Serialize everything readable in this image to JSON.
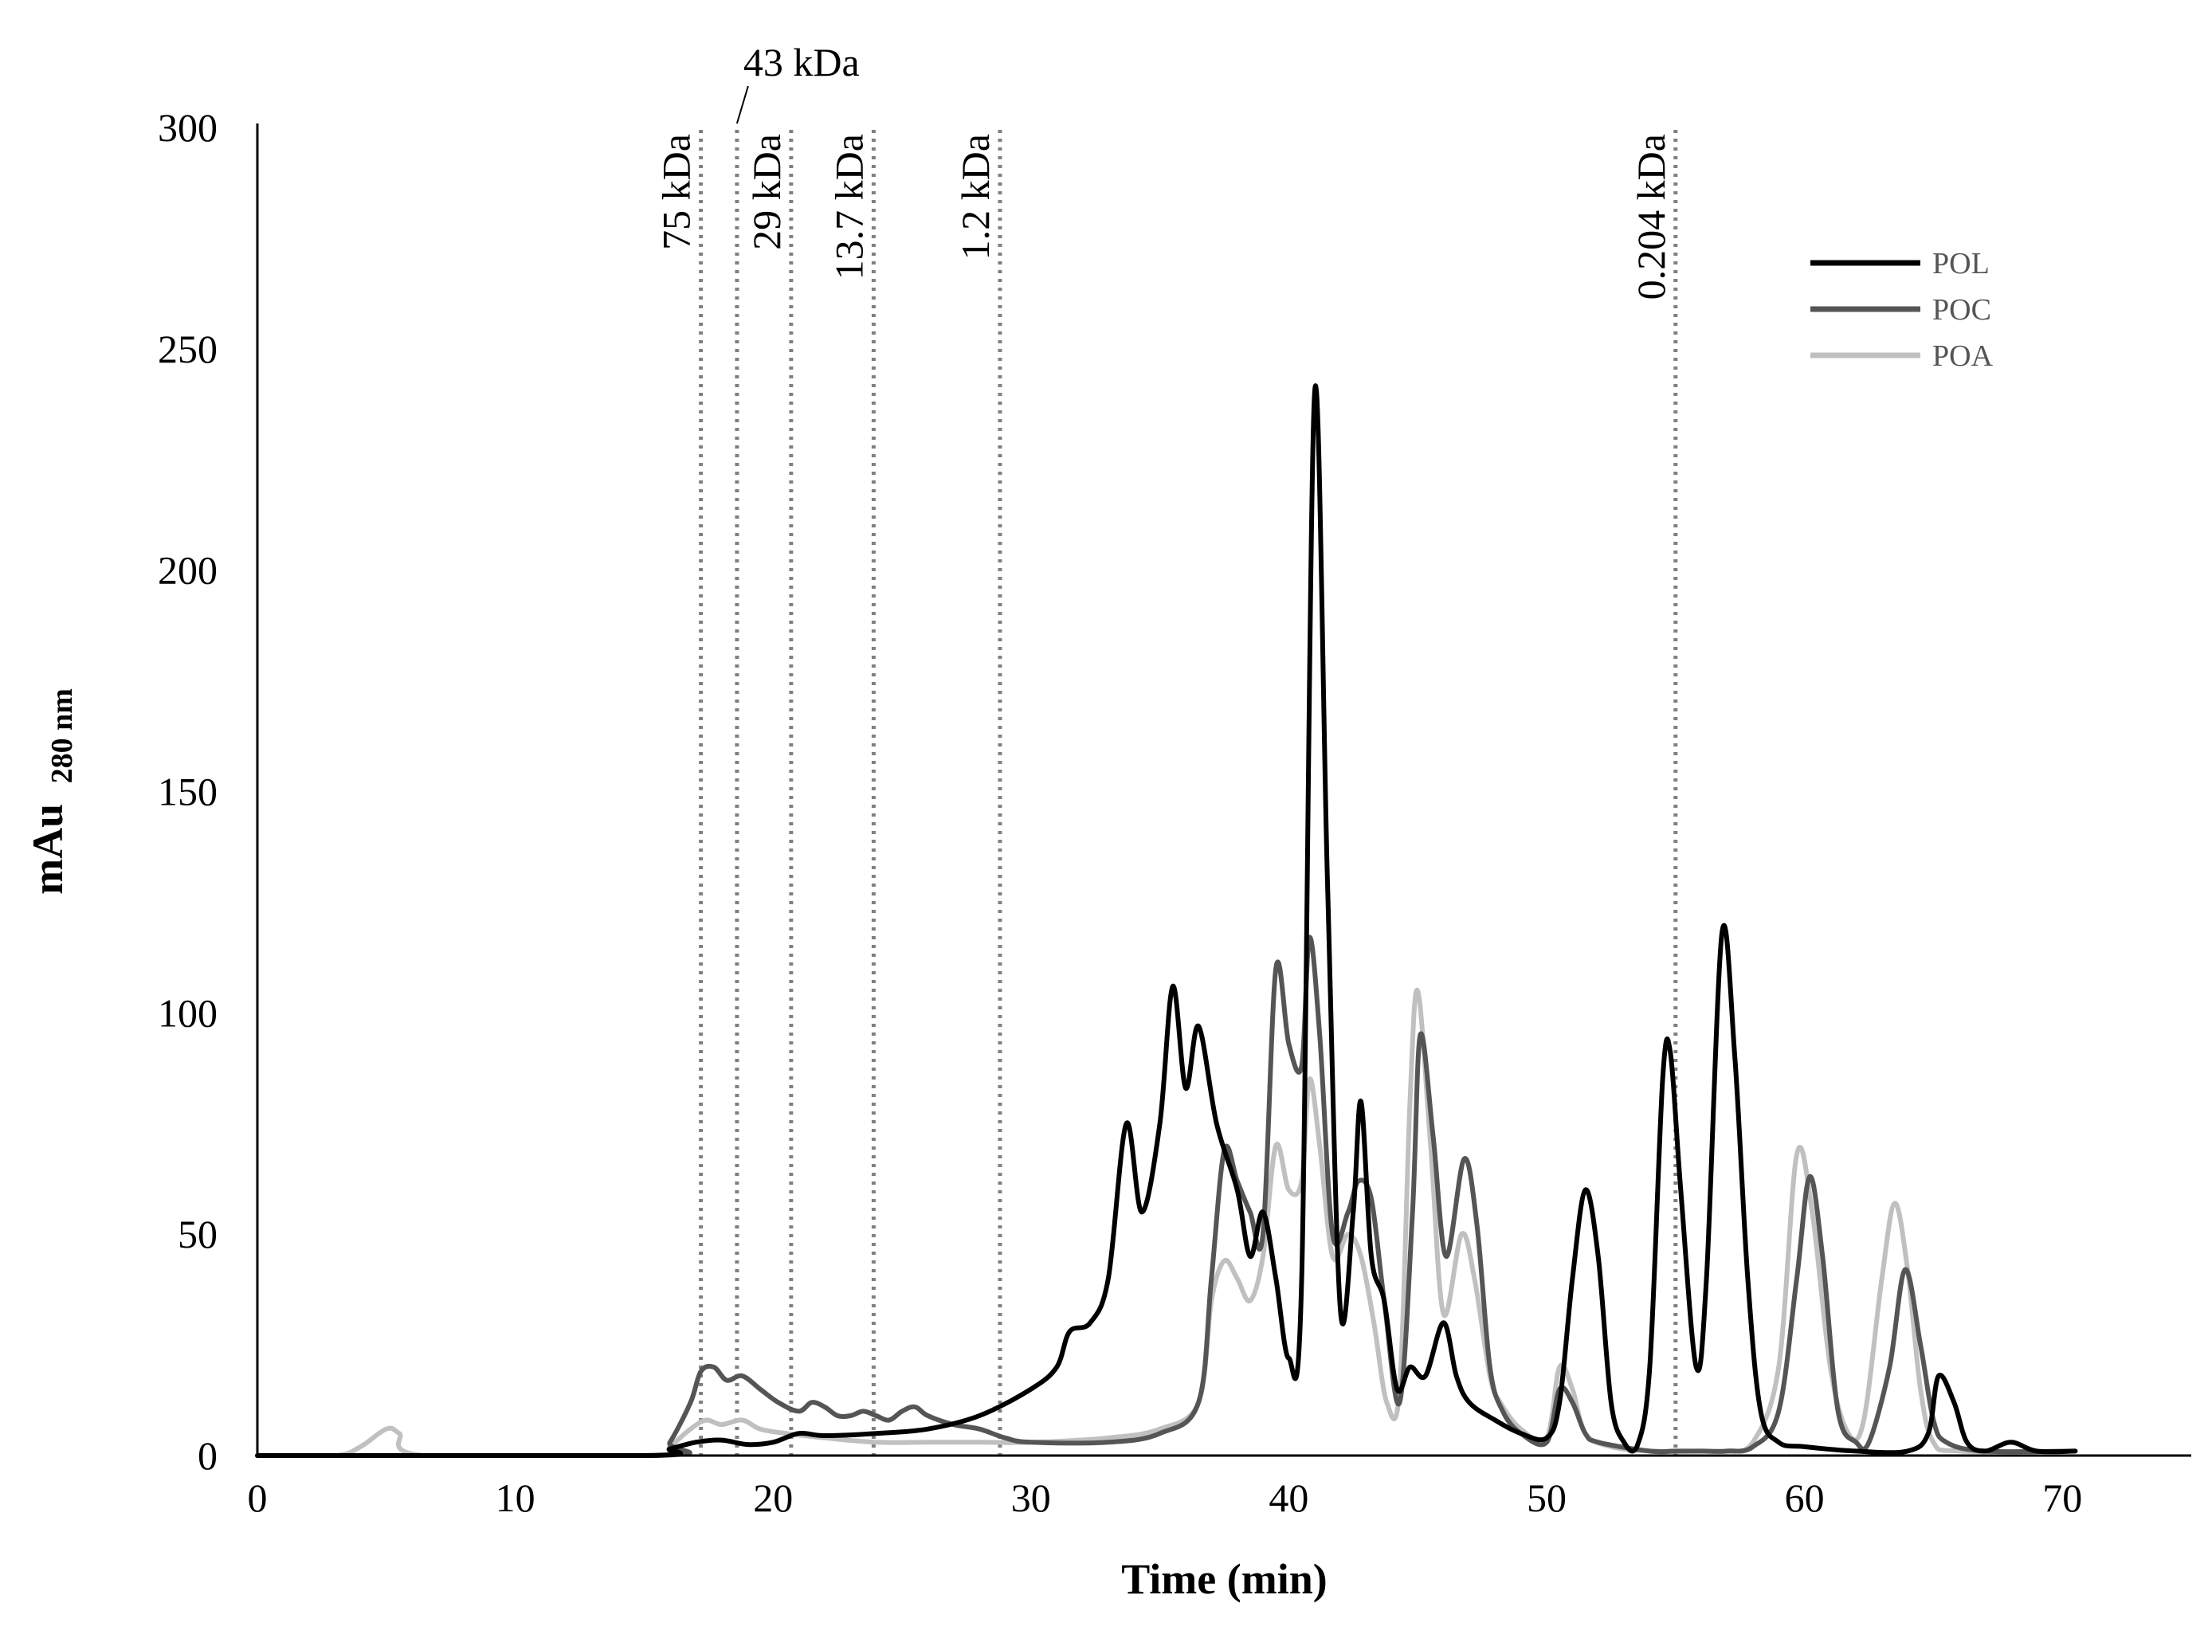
{
  "chart_data": {
    "type": "line",
    "title": "",
    "xlabel": "Time (min)",
    "ylabel_main": "mAu",
    "ylabel_sub": "280 nm",
    "xlim": [
      0,
      75
    ],
    "ylim": [
      0,
      300
    ],
    "x_ticks": [
      0,
      10,
      20,
      30,
      40,
      50,
      60,
      70
    ],
    "y_ticks": [
      0,
      50,
      100,
      150,
      200,
      250,
      300
    ],
    "grid": false,
    "legend_position": "top-right",
    "mw_markers": [
      {
        "label": "75 kDa",
        "x": 17.2
      },
      {
        "label": "43 kDa",
        "x": 18.6
      },
      {
        "label": "29 kDa",
        "x": 20.7
      },
      {
        "label": "13.7 kDa",
        "x": 23.9
      },
      {
        "label": "1.2 kDa",
        "x": 28.8
      },
      {
        "label": "0.204 kDa",
        "x": 55.0
      }
    ],
    "series": [
      {
        "name": "POL",
        "color": "#000000",
        "points": [
          [
            0,
            0
          ],
          [
            15,
            0
          ],
          [
            16,
            1.5
          ],
          [
            17,
            3
          ],
          [
            18,
            3.5
          ],
          [
            19,
            2.5
          ],
          [
            20,
            3
          ],
          [
            21,
            5
          ],
          [
            22,
            4.5
          ],
          [
            24,
            5
          ],
          [
            26,
            6
          ],
          [
            28,
            9
          ],
          [
            30,
            15
          ],
          [
            31,
            20
          ],
          [
            31.5,
            28
          ],
          [
            32.3,
            30
          ],
          [
            33,
            40
          ],
          [
            33.7,
            75
          ],
          [
            34.3,
            55
          ],
          [
            35,
            75
          ],
          [
            35.5,
            106
          ],
          [
            36,
            83
          ],
          [
            36.5,
            97
          ],
          [
            37.2,
            75
          ],
          [
            38,
            60
          ],
          [
            38.5,
            45
          ],
          [
            39,
            55
          ],
          [
            39.5,
            40
          ],
          [
            40,
            22
          ],
          [
            40.5,
            40
          ],
          [
            41,
            240
          ],
          [
            41.5,
            130
          ],
          [
            42,
            33
          ],
          [
            42.5,
            55
          ],
          [
            42.8,
            80
          ],
          [
            43.2,
            45
          ],
          [
            43.7,
            35
          ],
          [
            44.2,
            15
          ],
          [
            44.7,
            20
          ],
          [
            45.3,
            18
          ],
          [
            46,
            30
          ],
          [
            46.5,
            18
          ],
          [
            47,
            12
          ],
          [
            48,
            8
          ],
          [
            49,
            5
          ],
          [
            50,
            4
          ],
          [
            50.5,
            12
          ],
          [
            51,
            40
          ],
          [
            51.5,
            60
          ],
          [
            52,
            45
          ],
          [
            52.5,
            12
          ],
          [
            53,
            3
          ],
          [
            53.5,
            2
          ],
          [
            54,
            20
          ],
          [
            54.5,
            85
          ],
          [
            54.8,
            91
          ],
          [
            55.2,
            60
          ],
          [
            55.8,
            20
          ],
          [
            56.2,
            40
          ],
          [
            56.8,
            118
          ],
          [
            57.3,
            90
          ],
          [
            57.8,
            40
          ],
          [
            58.3,
            10
          ],
          [
            59,
            3
          ],
          [
            60,
            2
          ],
          [
            62,
            1
          ],
          [
            64,
            1
          ],
          [
            64.8,
            5
          ],
          [
            65.2,
            18
          ],
          [
            65.8,
            12
          ],
          [
            66.3,
            3
          ],
          [
            67,
            1
          ],
          [
            68,
            3
          ],
          [
            69,
            1
          ],
          [
            70.5,
            1
          ]
        ]
      },
      {
        "name": "POC",
        "color": "#555555",
        "points": [
          [
            0,
            0
          ],
          [
            15.5,
            0
          ],
          [
            16,
            3
          ],
          [
            16.8,
            12
          ],
          [
            17.2,
            19
          ],
          [
            17.7,
            20
          ],
          [
            18.2,
            17
          ],
          [
            18.8,
            18
          ],
          [
            19.5,
            15
          ],
          [
            20.2,
            12
          ],
          [
            21,
            10
          ],
          [
            21.5,
            12
          ],
          [
            22,
            11
          ],
          [
            22.5,
            9
          ],
          [
            23,
            9
          ],
          [
            23.5,
            10
          ],
          [
            24,
            9
          ],
          [
            24.5,
            8
          ],
          [
            25,
            10
          ],
          [
            25.5,
            11
          ],
          [
            26,
            9
          ],
          [
            27,
            7
          ],
          [
            28,
            6
          ],
          [
            29,
            4
          ],
          [
            30,
            3
          ],
          [
            33,
            3
          ],
          [
            35,
            5
          ],
          [
            36.5,
            12
          ],
          [
            37,
            40
          ],
          [
            37.5,
            69
          ],
          [
            38,
            62
          ],
          [
            38.5,
            55
          ],
          [
            39,
            50
          ],
          [
            39.5,
            110
          ],
          [
            40,
            93
          ],
          [
            40.5,
            88
          ],
          [
            40.8,
            117
          ],
          [
            41.2,
            95
          ],
          [
            41.7,
            50
          ],
          [
            42.3,
            55
          ],
          [
            42.7,
            62
          ],
          [
            43.2,
            58
          ],
          [
            43.7,
            35
          ],
          [
            44.3,
            12
          ],
          [
            44.8,
            55
          ],
          [
            45.1,
            95
          ],
          [
            45.6,
            72
          ],
          [
            46.1,
            45
          ],
          [
            46.8,
            67
          ],
          [
            47.3,
            52
          ],
          [
            47.8,
            20
          ],
          [
            48.3,
            10
          ],
          [
            49,
            5
          ],
          [
            50,
            3
          ],
          [
            50.5,
            15
          ],
          [
            51,
            12
          ],
          [
            51.5,
            5
          ],
          [
            52,
            3
          ],
          [
            54,
            1
          ],
          [
            55,
            1
          ],
          [
            56,
            1
          ],
          [
            57,
            1
          ],
          [
            58,
            2
          ],
          [
            59,
            10
          ],
          [
            59.7,
            40
          ],
          [
            60.2,
            63
          ],
          [
            60.7,
            45
          ],
          [
            61.3,
            10
          ],
          [
            62,
            3
          ],
          [
            62.5,
            3
          ],
          [
            63.3,
            20
          ],
          [
            63.9,
            42
          ],
          [
            64.5,
            25
          ],
          [
            65,
            8
          ],
          [
            65.5,
            3
          ],
          [
            67,
            1
          ],
          [
            70.5,
            1
          ]
        ]
      },
      {
        "name": "POA",
        "color": "#c0c0c0",
        "points": [
          [
            0,
            0
          ],
          [
            3,
            0
          ],
          [
            4,
            2
          ],
          [
            5,
            6
          ],
          [
            5.5,
            5
          ],
          [
            6.5,
            0
          ],
          [
            15.5,
            0
          ],
          [
            16,
            2
          ],
          [
            16.8,
            6
          ],
          [
            17.4,
            8
          ],
          [
            18,
            7
          ],
          [
            18.8,
            8
          ],
          [
            19.5,
            6
          ],
          [
            20.5,
            5
          ],
          [
            22,
            4
          ],
          [
            24,
            3
          ],
          [
            26,
            3
          ],
          [
            28,
            3
          ],
          [
            30,
            3
          ],
          [
            33,
            4
          ],
          [
            35,
            6
          ],
          [
            36.5,
            12
          ],
          [
            37,
            35
          ],
          [
            37.5,
            44
          ],
          [
            38,
            40
          ],
          [
            38.5,
            35
          ],
          [
            39,
            45
          ],
          [
            39.5,
            70
          ],
          [
            40,
            60
          ],
          [
            40.5,
            62
          ],
          [
            40.8,
            85
          ],
          [
            41.2,
            70
          ],
          [
            41.7,
            45
          ],
          [
            42.3,
            50
          ],
          [
            42.8,
            45
          ],
          [
            43.3,
            30
          ],
          [
            43.8,
            12
          ],
          [
            44.3,
            15
          ],
          [
            44.7,
            80
          ],
          [
            45,
            105
          ],
          [
            45.5,
            70
          ],
          [
            46,
            32
          ],
          [
            46.7,
            50
          ],
          [
            47.2,
            40
          ],
          [
            47.8,
            18
          ],
          [
            48.2,
            12
          ],
          [
            49,
            6
          ],
          [
            50,
            4
          ],
          [
            50.5,
            20
          ],
          [
            51,
            15
          ],
          [
            51.5,
            5
          ],
          [
            52.5,
            2
          ],
          [
            54,
            1
          ],
          [
            56,
            1
          ],
          [
            57,
            1
          ],
          [
            58,
            3
          ],
          [
            59,
            20
          ],
          [
            59.7,
            68
          ],
          [
            60.3,
            55
          ],
          [
            61,
            20
          ],
          [
            61.7,
            5
          ],
          [
            62.3,
            8
          ],
          [
            63,
            40
          ],
          [
            63.5,
            57
          ],
          [
            64,
            42
          ],
          [
            64.5,
            15
          ],
          [
            65,
            3
          ],
          [
            66,
            1
          ],
          [
            70.5,
            1
          ]
        ]
      }
    ]
  }
}
